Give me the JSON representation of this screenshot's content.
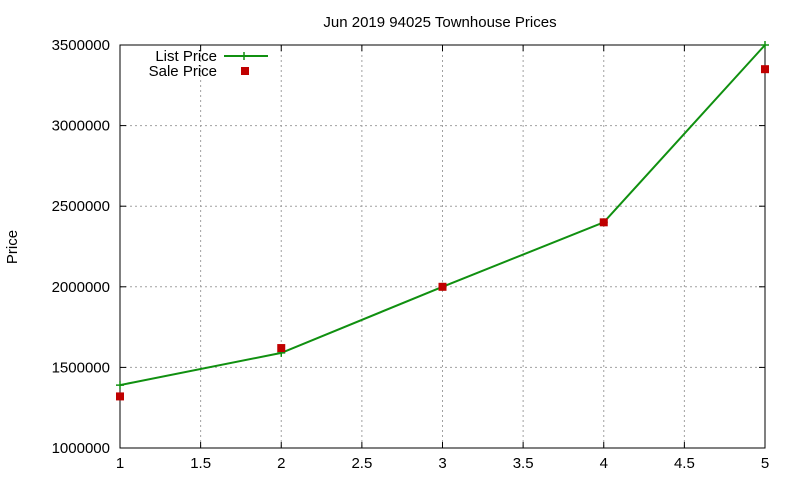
{
  "chart_data": {
    "type": "line",
    "title": "Jun 2019 94025 Townhouse Prices",
    "xlabel": "",
    "ylabel": "Price",
    "xlim": [
      1,
      5
    ],
    "ylim": [
      1000000,
      3500000
    ],
    "x_ticks": [
      "1",
      "1.5",
      "2",
      "2.5",
      "3",
      "3.5",
      "4",
      "4.5",
      "5"
    ],
    "y_ticks": [
      "1000000",
      "1500000",
      "2000000",
      "2500000",
      "3000000",
      "3500000"
    ],
    "grid": true,
    "legend_position": "top-left",
    "x": [
      1,
      2,
      3,
      4,
      5
    ],
    "series": [
      {
        "name": "List Price",
        "style": "line-with-plus-markers",
        "color": "#109010",
        "values": [
          1390000,
          1590000,
          2000000,
          2400000,
          3500000
        ]
      },
      {
        "name": "Sale Price",
        "style": "square-markers",
        "color": "#c00000",
        "values": [
          1320000,
          1620000,
          2000000,
          2400000,
          3350000
        ]
      }
    ]
  }
}
